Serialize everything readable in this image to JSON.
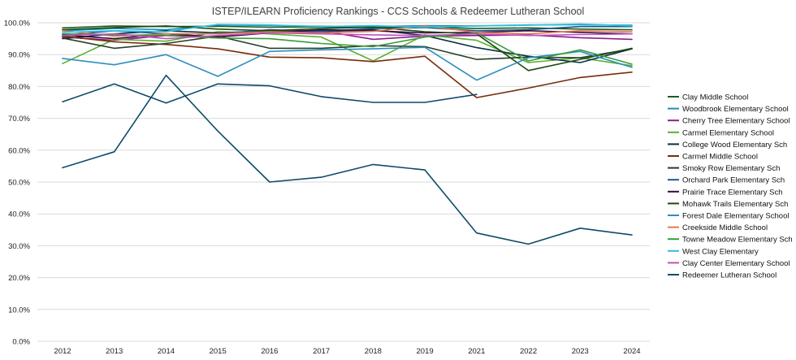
{
  "chart_data": {
    "type": "line",
    "title": "ISTEP/ILEARN Proficiency Rankings - CCS Schools & Redeemer Lutheran School",
    "xlabel": "",
    "ylabel": "",
    "categories": [
      "2012",
      "2013",
      "2014",
      "2015",
      "2016",
      "2017",
      "2018",
      "2019",
      "2021",
      "2022",
      "2023",
      "2024"
    ],
    "ylim": [
      0,
      100
    ],
    "yticks": [
      "0.0%",
      "10.0%",
      "20.0%",
      "30.0%",
      "40.0%",
      "50.0%",
      "60.0%",
      "70.0%",
      "80.0%",
      "90.0%",
      "100.0%"
    ],
    "grid": true,
    "legend_position": "right",
    "series": [
      {
        "name": "Clay Middle School",
        "color": "#1e5b1e",
        "values": [
          98.4,
          99.0,
          98.8,
          98.9,
          98.6,
          98.7,
          98.5,
          98.7,
          98.2,
          98.4,
          98.0,
          97.8
        ]
      },
      {
        "name": "Woodbrook Elementary School",
        "color": "#1f8fb5",
        "values": [
          97.5,
          98.2,
          97.8,
          99.3,
          99.1,
          98.9,
          98.8,
          99.1,
          99.0,
          99.3,
          99.4,
          99.2
        ]
      },
      {
        "name": "Cherry Tree Elementary School",
        "color": "#8a1f8a",
        "values": [
          95.5,
          94.5,
          96.0,
          95.5,
          97.0,
          97.5,
          94.8,
          95.8,
          96.0,
          96.2,
          95.3,
          94.8
        ]
      },
      {
        "name": "Carmel Elementary School",
        "color": "#5cb030",
        "values": [
          87.2,
          94.8,
          94.2,
          97.2,
          96.5,
          95.5,
          88.0,
          96.2,
          94.5,
          87.5,
          89.0,
          86.5
        ]
      },
      {
        "name": "College Wood Elementary Sch",
        "color": "#0a2e46",
        "values": [
          95.0,
          96.5,
          97.5,
          96.8,
          97.5,
          97.2,
          97.8,
          96.0,
          92.2,
          89.5,
          87.5,
          91.8
        ]
      },
      {
        "name": "Carmel Middle School",
        "color": "#7a2a0a",
        "values": [
          95.8,
          94.0,
          93.2,
          91.8,
          89.2,
          89.0,
          87.8,
          89.5,
          76.5,
          79.5,
          82.8,
          84.5
        ]
      },
      {
        "name": "Smoky Row Elementary Sch",
        "color": "#243f24",
        "values": [
          95.2,
          92.0,
          93.5,
          95.8,
          92.0,
          92.0,
          92.8,
          92.5,
          88.5,
          89.2,
          89.0,
          91.8
        ]
      },
      {
        "name": "Orchard Park Elementary Sch",
        "color": "#1a5a8a",
        "values": [
          96.0,
          97.5,
          96.5,
          96.5,
          97.8,
          97.3,
          98.2,
          98.5,
          97.5,
          97.8,
          98.8,
          98.8
        ]
      },
      {
        "name": "Prairie Trace Elementary Sch",
        "color": "#3a0a3a",
        "values": [
          96.2,
          95.0,
          96.5,
          95.5,
          96.8,
          97.8,
          97.5,
          96.8,
          97.0,
          97.5,
          97.0,
          96.5
        ]
      },
      {
        "name": "Mohawk Trails Elementary Sch",
        "color": "#1c4a14",
        "values": [
          97.8,
          98.5,
          99.0,
          98.0,
          97.5,
          98.2,
          98.6,
          97.2,
          96.5,
          85.0,
          88.5,
          92.0
        ]
      },
      {
        "name": "Forest Dale Elementary School",
        "color": "#2c8fbf",
        "values": [
          88.8,
          86.8,
          90.0,
          83.2,
          91.0,
          91.5,
          91.8,
          92.3,
          82.0,
          89.0,
          91.0,
          86.0
        ]
      },
      {
        "name": "Creekside Middle School",
        "color": "#e07a50",
        "values": [
          97.5,
          95.8,
          96.5,
          96.5,
          97.2,
          96.8,
          97.3,
          99.0,
          97.0,
          96.5,
          97.5,
          97.2
        ]
      },
      {
        "name": "Towne Meadow Elementary Sch",
        "color": "#3a9a3a",
        "values": [
          96.5,
          96.2,
          96.0,
          95.2,
          95.0,
          93.5,
          92.5,
          95.5,
          96.8,
          88.0,
          91.5,
          87.0
        ]
      },
      {
        "name": "West Clay Elementary",
        "color": "#2cc0e0",
        "values": [
          97.0,
          97.5,
          97.2,
          99.5,
          99.3,
          98.8,
          99.1,
          98.6,
          99.0,
          99.2,
          99.6,
          99.0
        ]
      },
      {
        "name": "Clay Center Elementary School",
        "color": "#c050c0",
        "values": [
          96.0,
          96.5,
          95.0,
          96.0,
          96.8,
          96.5,
          96.2,
          96.0,
          96.5,
          96.0,
          96.3,
          96.5
        ]
      },
      {
        "name": "Redeemer Lutheran School",
        "color": "#0e4a6a",
        "values": [
          75.2,
          80.8,
          74.8,
          80.8,
          80.2,
          76.8,
          75.0,
          75.0,
          77.5,
          null,
          null,
          null
        ]
      }
    ],
    "extra_series": [
      {
        "name": "Redeemer Lutheran School (2)",
        "color": "#0e4a6a",
        "values": [
          54.5,
          59.5,
          83.5,
          66.0,
          50.0,
          51.5,
          55.5,
          53.8,
          34.0,
          30.5,
          35.5,
          33.4
        ]
      }
    ]
  }
}
